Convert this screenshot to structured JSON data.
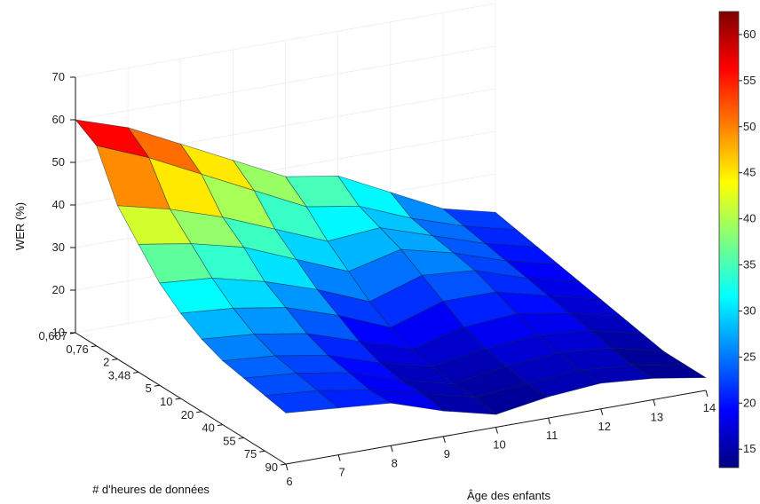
{
  "chart_data": {
    "type": "surface3d",
    "zlabel": "WER (%)",
    "xlabel": "# d'heures de données",
    "ylabel": "Âge des enfants",
    "z_ticks": [
      "10",
      "20",
      "30",
      "40",
      "50",
      "60",
      "70"
    ],
    "zlim": [
      10,
      70
    ],
    "x_categories": [
      "0,607",
      "0,76",
      "2",
      "3,48",
      "5",
      "10",
      "20",
      "40",
      "55",
      "75",
      "90"
    ],
    "y_categories": [
      "6",
      "7",
      "8",
      "9",
      "10",
      "11",
      "12",
      "13",
      "14"
    ],
    "colorbar": {
      "ticks": [
        "15",
        "20",
        "25",
        "30",
        "35",
        "40",
        "45",
        "50",
        "55",
        "60"
      ],
      "range": [
        13,
        62.5
      ],
      "colormap": [
        "#00007f",
        "#0000ff",
        "#007fff",
        "#00ffff",
        "#7fff7f",
        "#ffff00",
        "#ff7f00",
        "#ff0000",
        "#7f0000"
      ]
    },
    "values": [
      [
        60,
        56,
        50,
        44,
        38,
        36,
        30,
        24,
        21
      ],
      [
        57,
        52,
        46,
        40,
        34,
        32,
        27,
        23,
        20
      ],
      [
        46,
        43,
        39,
        34,
        29,
        30,
        26,
        22,
        19
      ],
      [
        40,
        38,
        35,
        30,
        25,
        28,
        25,
        21,
        18
      ],
      [
        34,
        33,
        30,
        26,
        21,
        25,
        24,
        20,
        17
      ],
      [
        30,
        29,
        27,
        23,
        18,
        22,
        22,
        19,
        16
      ],
      [
        27,
        26,
        24,
        20,
        16,
        19,
        20,
        18,
        15
      ],
      [
        25,
        24,
        22,
        18,
        15,
        17,
        18,
        17,
        14
      ],
      [
        24,
        23,
        21,
        17,
        14,
        16,
        17,
        16,
        13
      ],
      [
        23,
        22,
        20,
        17,
        14,
        15,
        16,
        15,
        13
      ],
      [
        22,
        21,
        20,
        16,
        13,
        15,
        16,
        15,
        13
      ]
    ]
  }
}
